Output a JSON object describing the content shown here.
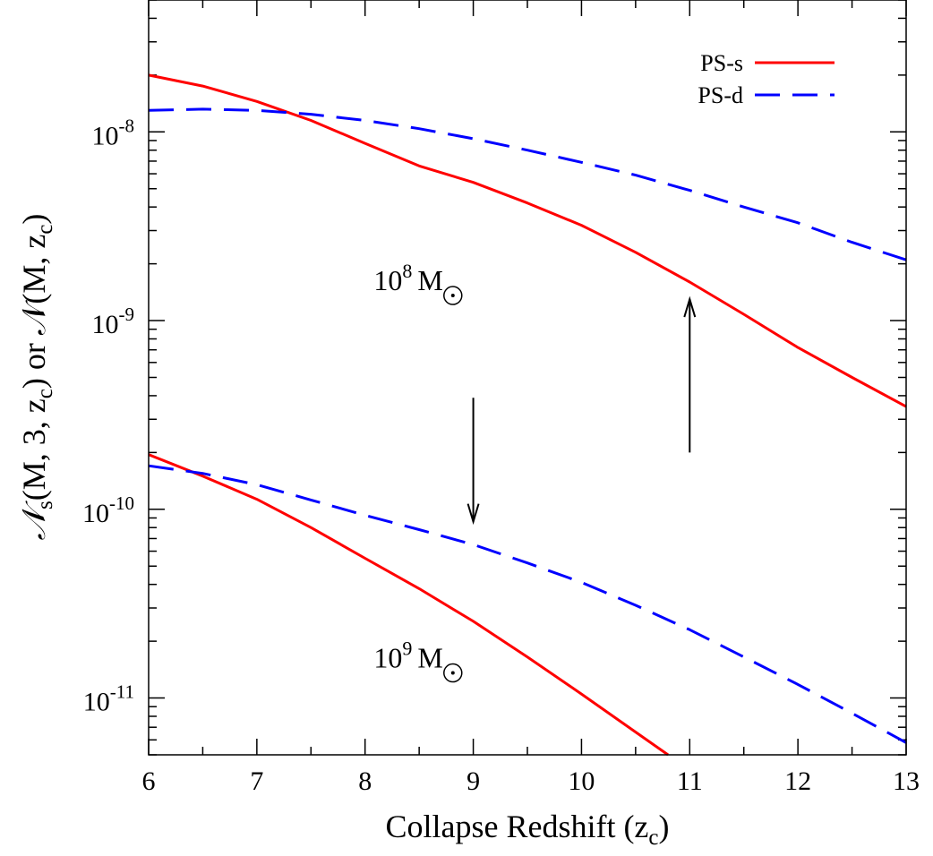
{
  "chart_data": {
    "type": "line",
    "xlabel": "Collapse Redshift (z",
    "xlabel_sub": "c",
    "xlabel_end": ")",
    "ylabel_parts": [
      "𝒩",
      "s",
      "(M, 3, z",
      "c",
      ") or 𝒩(M, z",
      "c",
      ")"
    ],
    "xlim": [
      6,
      13
    ],
    "ylim": [
      5e-12,
      5e-08
    ],
    "yscale": "log",
    "x_ticks": [
      6,
      7,
      8,
      9,
      10,
      11,
      12,
      13
    ],
    "x_tick_labels": [
      "6",
      "7",
      "8",
      "9",
      "10",
      "11",
      "12",
      "13"
    ],
    "y_ticks": [
      {
        "value": 1e-08,
        "base": "10",
        "exp": "-8"
      },
      {
        "value": 1e-09,
        "base": "10",
        "exp": "-9"
      },
      {
        "value": 1e-10,
        "base": "10",
        "exp": "-10"
      },
      {
        "value": 1e-11,
        "base": "10",
        "exp": "-11"
      }
    ],
    "legend": {
      "placement": "top-right",
      "entries": [
        {
          "label": "PS-s",
          "color": "#ff0000",
          "dash": "solid"
        },
        {
          "label": "PS-d",
          "color": "#0000ff",
          "dash": "dashed"
        }
      ]
    },
    "series": [
      {
        "name": "PS-s",
        "mass": "10^8",
        "color": "#ff0000",
        "dash": "solid",
        "x": [
          6,
          6.5,
          7,
          7.5,
          8,
          8.5,
          9,
          9.5,
          10,
          10.5,
          11,
          11.5,
          12,
          12.5,
          13
        ],
        "y": [
          2e-08,
          1.75e-08,
          1.45e-08,
          1.15e-08,
          8.7e-09,
          6.6e-09,
          5.4e-09,
          4.2e-09,
          3.2e-09,
          2.3e-09,
          1.6e-09,
          1.08e-09,
          7.2e-10,
          5e-10,
          3.5e-10
        ]
      },
      {
        "name": "PS-d",
        "mass": "10^8",
        "color": "#0000ff",
        "dash": "dashed",
        "x": [
          6,
          6.5,
          7,
          7.5,
          8,
          8.5,
          9,
          9.5,
          10,
          10.5,
          11,
          11.5,
          12,
          12.5,
          13
        ],
        "y": [
          1.3e-08,
          1.32e-08,
          1.3e-08,
          1.24e-08,
          1.15e-08,
          1.04e-08,
          9.2e-09,
          8e-09,
          6.9e-09,
          5.9e-09,
          4.9e-09,
          4e-09,
          3.3e-09,
          2.6e-09,
          2.1e-09
        ]
      },
      {
        "name": "PS-s",
        "mass": "10^9",
        "color": "#ff0000",
        "dash": "solid",
        "x": [
          6,
          6.5,
          7,
          7.5,
          8,
          8.5,
          9,
          9.5,
          10,
          10.5,
          10.8
        ],
        "y": [
          1.95e-10,
          1.5e-10,
          1.13e-10,
          8e-11,
          5.5e-11,
          3.8e-11,
          2.55e-11,
          1.65e-11,
          1.05e-11,
          6.6e-12,
          5e-12
        ]
      },
      {
        "name": "PS-d",
        "mass": "10^9",
        "color": "#0000ff",
        "dash": "dashed",
        "x": [
          6,
          6.5,
          7,
          7.5,
          8,
          8.5,
          9,
          9.5,
          10,
          10.5,
          11,
          11.5,
          12,
          12.5,
          13
        ],
        "y": [
          1.7e-10,
          1.55e-10,
          1.35e-10,
          1.12e-10,
          9.3e-11,
          7.8e-11,
          6.5e-11,
          5.2e-11,
          4.1e-11,
          3.1e-11,
          2.3e-11,
          1.65e-11,
          1.18e-11,
          8.3e-12,
          5.8e-12
        ]
      }
    ],
    "annotations": [
      {
        "base": "10",
        "exp": "8",
        "unit": "M",
        "x": 8.4,
        "y": 1.45e-09
      },
      {
        "base": "10",
        "exp": "9",
        "unit": "M",
        "x": 8.4,
        "y": 1.45e-11
      }
    ],
    "arrows": [
      {
        "x": 11,
        "y_from": 2e-10,
        "y_to": 1.3e-09
      },
      {
        "x": 9,
        "y_from": 3.9e-10,
        "y_to": 8.6e-11
      }
    ]
  }
}
